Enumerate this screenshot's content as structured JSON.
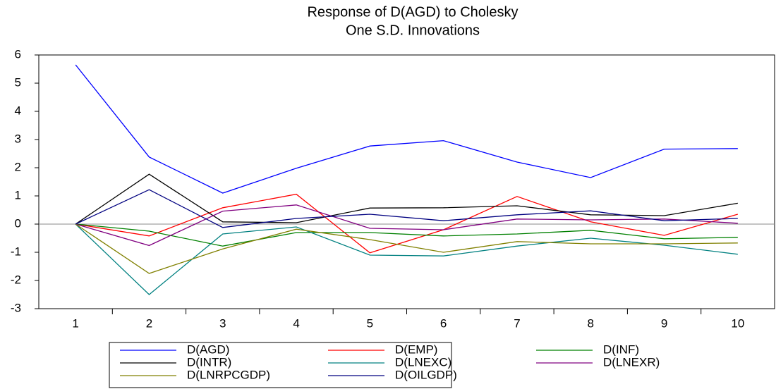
{
  "chart_data": {
    "type": "line",
    "title": "Response of D(AGD) to Cholesky",
    "subtitle": "One S.D. Innovations",
    "categories": [
      "1",
      "2",
      "3",
      "4",
      "5",
      "6",
      "7",
      "8",
      "9",
      "10"
    ],
    "series": [
      {
        "name": "D(AGD)",
        "color": "#0000ff",
        "values": [
          5.65,
          2.38,
          1.1,
          1.98,
          2.77,
          2.96,
          2.2,
          1.65,
          2.66,
          2.68
        ]
      },
      {
        "name": "D(EMP)",
        "color": "#ff0000",
        "values": [
          0,
          -0.42,
          0.58,
          1.06,
          -1.02,
          -0.2,
          0.98,
          0.08,
          -0.4,
          0.35
        ]
      },
      {
        "name": "D(INF)",
        "color": "#008000",
        "values": [
          0,
          -0.25,
          -0.78,
          -0.3,
          -0.3,
          -0.42,
          -0.35,
          -0.22,
          -0.52,
          -0.47
        ]
      },
      {
        "name": "D(INTR)",
        "color": "#000000",
        "values": [
          0,
          1.77,
          0.08,
          0.05,
          0.57,
          0.58,
          0.65,
          0.33,
          0.3,
          0.74
        ]
      },
      {
        "name": "D(LNEXC)",
        "color": "#008080",
        "values": [
          0,
          -2.5,
          -0.35,
          -0.1,
          -1.1,
          -1.13,
          -0.78,
          -0.5,
          -0.75,
          -1.07
        ]
      },
      {
        "name": "D(LNEXR)",
        "color": "#800080",
        "values": [
          0,
          -0.76,
          0.46,
          0.68,
          -0.15,
          -0.2,
          0.18,
          0.15,
          0.18,
          0.03
        ]
      },
      {
        "name": "D(LNRPCGDP)",
        "color": "#808000",
        "values": [
          0,
          -1.75,
          -0.88,
          -0.18,
          -0.55,
          -1.0,
          -0.62,
          -0.7,
          -0.7,
          -0.67
        ]
      },
      {
        "name": "D(OILGDP)",
        "color": "#000080",
        "values": [
          0,
          1.22,
          -0.12,
          0.2,
          0.35,
          0.12,
          0.33,
          0.47,
          0.12,
          0.2
        ]
      }
    ],
    "ylim": [
      -3,
      6
    ],
    "yticks": [
      -3,
      -2,
      -1,
      0,
      1,
      2,
      3,
      4,
      5,
      6
    ],
    "zero_line": true
  }
}
